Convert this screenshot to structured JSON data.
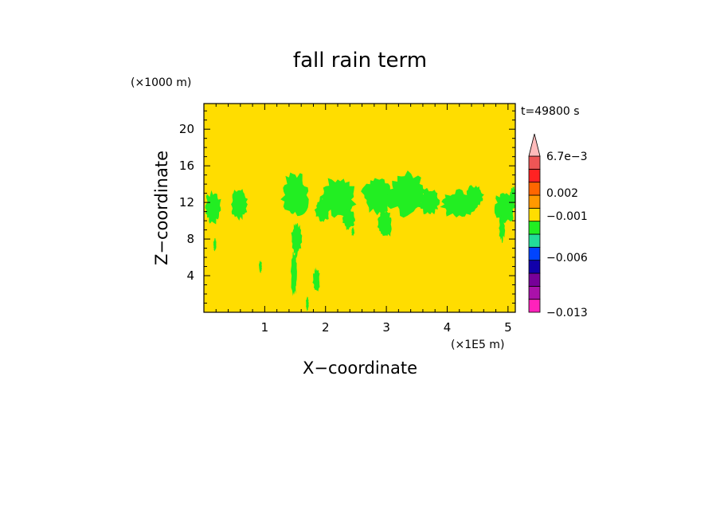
{
  "chart_data": {
    "type": "heatmap",
    "title": "fall rain term",
    "xlabel": "X−coordinate",
    "ylabel": "Z−coordinate",
    "x_unit": "(×1E5 m)",
    "y_unit": "(×1000 m)",
    "time_label": "t=49800 s",
    "xlim": [
      0,
      5.12
    ],
    "ylim": [
      0,
      22.8
    ],
    "x_ticks": [
      1,
      2,
      3,
      4,
      5
    ],
    "y_ticks": [
      4,
      8,
      12,
      16,
      20
    ],
    "x_tick_labels": [
      "1",
      "2",
      "3",
      "4",
      "5"
    ],
    "y_tick_labels": [
      "4",
      "8",
      "12",
      "16",
      "20"
    ],
    "background_color": "#ffdd00",
    "feature_color": "#22ee22",
    "colorbar": {
      "colors": [
        "#ff22bb",
        "#aa11aa",
        "#770099",
        "#1100aa",
        "#0044ff",
        "#22dd99",
        "#22ee22",
        "#ffdd00",
        "#ff9900",
        "#ff6600",
        "#ff2222",
        "#ee5555",
        "#ffbbbb"
      ],
      "labels": [
        "−0.013",
        "−0.006",
        "−0.001",
        "0.002",
        "6.7e−3"
      ]
    },
    "features": [
      {
        "x": 0.15,
        "z": 11.4,
        "w": 0.28,
        "h": 3.6
      },
      {
        "x": 0.58,
        "z": 11.8,
        "w": 0.3,
        "h": 3.4
      },
      {
        "x": 1.5,
        "z": 12.8,
        "w": 0.45,
        "h": 5.0
      },
      {
        "x": 1.52,
        "z": 8.0,
        "w": 0.18,
        "h": 4.0
      },
      {
        "x": 1.48,
        "z": 4.0,
        "w": 0.1,
        "h": 5.0
      },
      {
        "x": 2.2,
        "z": 12.6,
        "w": 0.6,
        "h": 4.4
      },
      {
        "x": 1.95,
        "z": 11.2,
        "w": 0.25,
        "h": 3.0
      },
      {
        "x": 2.38,
        "z": 10.2,
        "w": 0.2,
        "h": 2.4
      },
      {
        "x": 2.85,
        "z": 12.8,
        "w": 0.5,
        "h": 4.2
      },
      {
        "x": 3.35,
        "z": 12.9,
        "w": 0.7,
        "h": 4.8
      },
      {
        "x": 2.98,
        "z": 9.6,
        "w": 0.25,
        "h": 3.2
      },
      {
        "x": 3.7,
        "z": 12.0,
        "w": 0.35,
        "h": 3.0
      },
      {
        "x": 4.2,
        "z": 11.8,
        "w": 0.6,
        "h": 3.2
      },
      {
        "x": 4.45,
        "z": 12.6,
        "w": 0.3,
        "h": 2.6
      },
      {
        "x": 4.95,
        "z": 11.5,
        "w": 0.35,
        "h": 3.6
      },
      {
        "x": 5.08,
        "z": 12.6,
        "w": 0.12,
        "h": 2.2
      },
      {
        "x": 4.9,
        "z": 9.2,
        "w": 0.1,
        "h": 3.0
      },
      {
        "x": 1.85,
        "z": 3.5,
        "w": 0.12,
        "h": 2.8
      },
      {
        "x": 0.18,
        "z": 7.4,
        "w": 0.05,
        "h": 1.4
      },
      {
        "x": 0.93,
        "z": 5.0,
        "w": 0.05,
        "h": 1.4
      },
      {
        "x": 1.7,
        "z": 0.9,
        "w": 0.05,
        "h": 1.6
      },
      {
        "x": 2.45,
        "z": 8.8,
        "w": 0.05,
        "h": 1.0
      }
    ]
  }
}
